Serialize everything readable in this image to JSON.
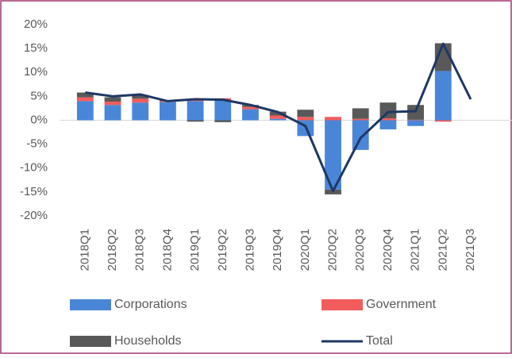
{
  "chart_data": {
    "type": "bar",
    "stacked": true,
    "categories": [
      "2018Q1",
      "2018Q2",
      "2018Q3",
      "2018Q4",
      "2019Q1",
      "2019Q2",
      "2019Q3",
      "2019Q4",
      "2020Q1",
      "2020Q2",
      "2020Q3",
      "2020Q4",
      "2021Q1",
      "2021Q2",
      "2021Q3"
    ],
    "series": [
      {
        "name": "Corporations",
        "color": "#4a86d8",
        "values": [
          4.0,
          3.2,
          3.7,
          3.8,
          4.0,
          4.2,
          2.3,
          0.3,
          -3.3,
          -14.5,
          -6.2,
          -1.9,
          -1.2,
          10.3,
          null
        ]
      },
      {
        "name": "Government",
        "color": "#f25c5c",
        "values": [
          0.8,
          0.7,
          0.8,
          0.2,
          0.2,
          0.4,
          0.5,
          0.7,
          0.7,
          0.7,
          0.3,
          0.4,
          0.1,
          -0.3,
          null
        ]
      },
      {
        "name": "Households",
        "color": "#595959",
        "values": [
          1.0,
          0.9,
          0.8,
          0.2,
          -0.3,
          -0.4,
          0.4,
          0.8,
          1.5,
          -1.0,
          2.2,
          3.3,
          3.1,
          5.8,
          null
        ]
      },
      {
        "name": "Total",
        "color": "#1f3864",
        "type": "line",
        "values": [
          5.8,
          5.0,
          5.4,
          4.0,
          4.4,
          4.3,
          3.2,
          1.7,
          -1.2,
          -14.8,
          -3.7,
          1.7,
          1.9,
          16.0,
          4.4
        ]
      }
    ],
    "ylim": [
      -20,
      20
    ],
    "yticks": [
      {
        "value": -20,
        "label": "-20%"
      },
      {
        "value": -15,
        "label": "-15%"
      },
      {
        "value": -10,
        "label": "-10%"
      },
      {
        "value": -5,
        "label": "-5%"
      },
      {
        "value": 0,
        "label": "0%"
      },
      {
        "value": 5,
        "label": "5%"
      },
      {
        "value": 10,
        "label": "10%"
      },
      {
        "value": 15,
        "label": "15%"
      },
      {
        "value": 20,
        "label": "20%"
      }
    ]
  }
}
